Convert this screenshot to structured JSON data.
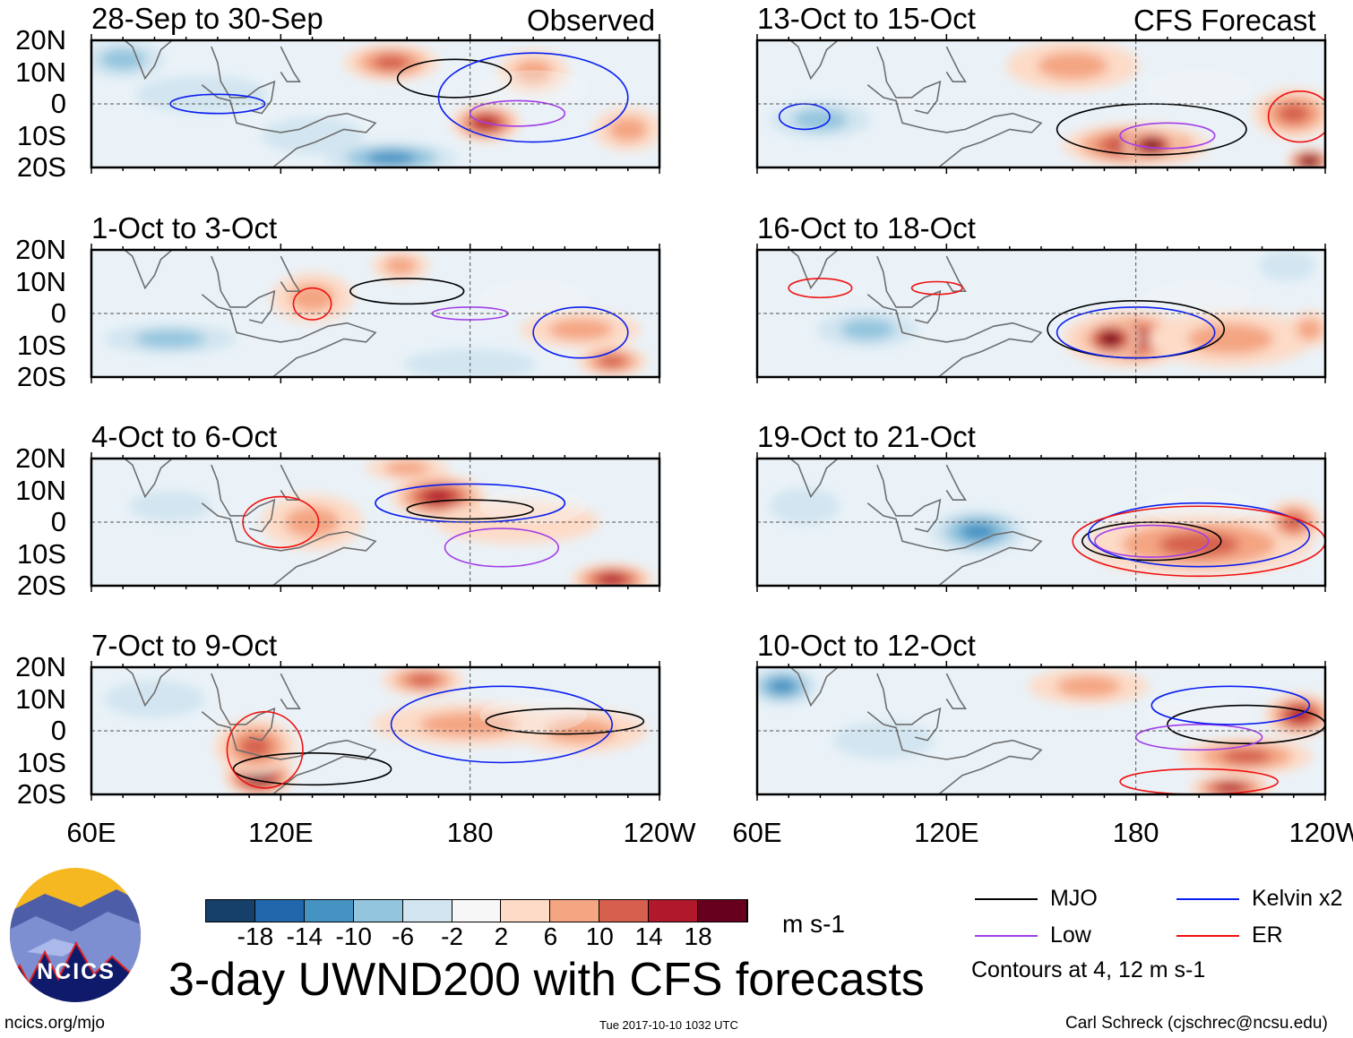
{
  "chart_data": {
    "type": "heatmap",
    "title": "3-day UWND200 with CFS forecasts",
    "variable_units": "m s-1",
    "x_ticks": [
      "60E",
      "120E",
      "180",
      "120W"
    ],
    "y_ticks": [
      "20N",
      "10N",
      "0",
      "10S",
      "20S"
    ],
    "lon_range": [
      60,
      240
    ],
    "lat_range": [
      -20,
      20
    ],
    "column_labels": {
      "left": "Observed",
      "right": "CFS Forecast"
    },
    "colorbar": {
      "labels": [
        "-18",
        "-14",
        "-10",
        "-6",
        "-2",
        "2",
        "6",
        "10",
        "14",
        "18"
      ],
      "colors": [
        "#163f69",
        "#2266ab",
        "#4493c3",
        "#93c5de",
        "#d2e5f0",
        "#f7f7f7",
        "#fddbc7",
        "#f4a582",
        "#d6604d",
        "#b2182b",
        "#67001f"
      ],
      "units": "m s-1"
    },
    "contour_legend": [
      {
        "label": "MJO",
        "color": "#000000"
      },
      {
        "label": "Low",
        "color": "#a23ee8"
      },
      {
        "label": "Kelvin x2",
        "color": "#0a1ef0"
      },
      {
        "label": "ER",
        "color": "#f01010"
      }
    ],
    "contour_note": "Contours at 4, 12 m s-1",
    "panels": [
      {
        "title": "28-Sep to 30-Sep",
        "blobs": [
          [
            155,
            13,
            14,
            5,
            10
          ],
          [
            185,
            -6,
            10,
            5,
            16
          ],
          [
            200,
            10,
            10,
            6,
            6
          ],
          [
            155,
            -17,
            20,
            4,
            -12
          ],
          [
            70,
            14,
            12,
            5,
            -8
          ],
          [
            95,
            3,
            20,
            5,
            -4
          ],
          [
            230,
            -8,
            10,
            6,
            8
          ],
          [
            130,
            -10,
            15,
            5,
            -4
          ]
        ],
        "contours": [
          [
            "MJO",
            175,
            8,
            18,
            6
          ],
          [
            "Kelvin",
            200,
            2,
            30,
            14
          ],
          [
            "Low",
            195,
            -3,
            15,
            4
          ],
          [
            "Kelvin",
            100,
            0,
            15,
            3
          ]
        ]
      },
      {
        "title": "13-Oct to 15-Oct",
        "blobs": [
          [
            180,
            -13,
            22,
            6,
            14
          ],
          [
            185,
            -13,
            8,
            4,
            18
          ],
          [
            230,
            -3,
            12,
            7,
            12
          ],
          [
            80,
            -5,
            15,
            5,
            -6
          ],
          [
            160,
            12,
            20,
            7,
            6
          ],
          [
            235,
            -18,
            6,
            3,
            18
          ]
        ],
        "contours": [
          [
            "MJO",
            185,
            -8,
            30,
            8
          ],
          [
            "Low",
            190,
            -10,
            15,
            4
          ],
          [
            "Kelvin",
            75,
            -4,
            8,
            4
          ],
          [
            "ER",
            232,
            -4,
            10,
            8
          ]
        ]
      },
      {
        "title": "1-Oct to 3-Oct",
        "blobs": [
          [
            130,
            5,
            12,
            7,
            8
          ],
          [
            158,
            15,
            8,
            4,
            8
          ],
          [
            225,
            -15,
            10,
            4,
            12
          ],
          [
            215,
            -5,
            18,
            5,
            6
          ],
          [
            85,
            -8,
            20,
            4,
            -6
          ],
          [
            180,
            -16,
            20,
            4,
            -4
          ]
        ],
        "contours": [
          [
            "MJO",
            160,
            7,
            18,
            4
          ],
          [
            "Low",
            180,
            0,
            12,
            2
          ],
          [
            "Kelvin",
            215,
            -6,
            15,
            8
          ],
          [
            "ER",
            130,
            3,
            6,
            5
          ]
        ]
      },
      {
        "title": "16-Oct to 18-Oct",
        "blobs": [
          [
            178,
            -8,
            20,
            8,
            14
          ],
          [
            172,
            -8,
            8,
            5,
            20
          ],
          [
            210,
            -8,
            25,
            8,
            8
          ],
          [
            95,
            -5,
            15,
            5,
            -6
          ],
          [
            228,
            15,
            8,
            4,
            -4
          ],
          [
            235,
            -5,
            6,
            5,
            8
          ]
        ],
        "contours": [
          [
            "MJO",
            180,
            -5,
            28,
            9
          ],
          [
            "Kelvin",
            180,
            -6,
            25,
            8
          ],
          [
            "ER",
            80,
            8,
            10,
            3
          ],
          [
            "ER",
            117,
            8,
            8,
            2
          ]
        ]
      },
      {
        "title": "4-Oct to 6-Oct",
        "blobs": [
          [
            170,
            8,
            14,
            6,
            14
          ],
          [
            130,
            0,
            15,
            8,
            6
          ],
          [
            225,
            -18,
            12,
            4,
            16
          ],
          [
            160,
            17,
            12,
            3,
            8
          ],
          [
            195,
            0,
            25,
            6,
            4
          ],
          [
            85,
            5,
            12,
            4,
            -4
          ]
        ],
        "contours": [
          [
            "MJO",
            180,
            4,
            20,
            3
          ],
          [
            "Kelvin",
            180,
            6,
            30,
            6
          ],
          [
            "Low",
            190,
            -8,
            18,
            6
          ],
          [
            "ER",
            120,
            0,
            12,
            8
          ]
        ]
      },
      {
        "title": "19-Oct to 21-Oct",
        "blobs": [
          [
            185,
            -8,
            18,
            7,
            16
          ],
          [
            200,
            -7,
            35,
            9,
            10
          ],
          [
            130,
            -3,
            14,
            6,
            -10
          ],
          [
            230,
            0,
            8,
            6,
            12
          ],
          [
            75,
            5,
            10,
            5,
            -4
          ]
        ],
        "contours": [
          [
            "MJO",
            185,
            -6,
            22,
            6
          ],
          [
            "Kelvin",
            200,
            -4,
            35,
            10
          ],
          [
            "ER",
            200,
            -6,
            40,
            11
          ],
          [
            "Low",
            185,
            -6,
            18,
            5
          ]
        ]
      },
      {
        "title": "7-Oct to 9-Oct",
        "blobs": [
          [
            113,
            -14,
            10,
            6,
            18
          ],
          [
            112,
            -5,
            12,
            8,
            10
          ],
          [
            165,
            16,
            12,
            4,
            12
          ],
          [
            180,
            2,
            30,
            6,
            8
          ],
          [
            215,
            0,
            20,
            6,
            6
          ],
          [
            80,
            10,
            15,
            5,
            -4
          ]
        ],
        "contours": [
          [
            "MJO",
            210,
            3,
            25,
            4
          ],
          [
            "MJO",
            130,
            -12,
            25,
            5
          ],
          [
            "ER",
            115,
            -6,
            12,
            12
          ],
          [
            "Kelvin",
            190,
            2,
            35,
            12
          ]
        ]
      },
      {
        "title": "10-Oct to 12-Oct",
        "blobs": [
          [
            68,
            14,
            10,
            5,
            -10
          ],
          [
            165,
            14,
            18,
            5,
            8
          ],
          [
            232,
            5,
            10,
            6,
            16
          ],
          [
            215,
            -8,
            20,
            5,
            10
          ],
          [
            210,
            -18,
            12,
            3,
            14
          ],
          [
            100,
            -3,
            15,
            5,
            -4
          ]
        ],
        "contours": [
          [
            "MJO",
            215,
            2,
            25,
            6
          ],
          [
            "Low",
            200,
            -2,
            20,
            4
          ],
          [
            "Kelvin",
            210,
            8,
            25,
            6
          ],
          [
            "ER",
            200,
            -16,
            25,
            4
          ]
        ]
      }
    ]
  },
  "footer": {
    "logo_text": "NCICS",
    "url": "ncics.org/mjo",
    "timestamp": "Tue 2017-10-10 1032 UTC",
    "author": "Carl Schreck (cjschrec@ncsu.edu)"
  }
}
